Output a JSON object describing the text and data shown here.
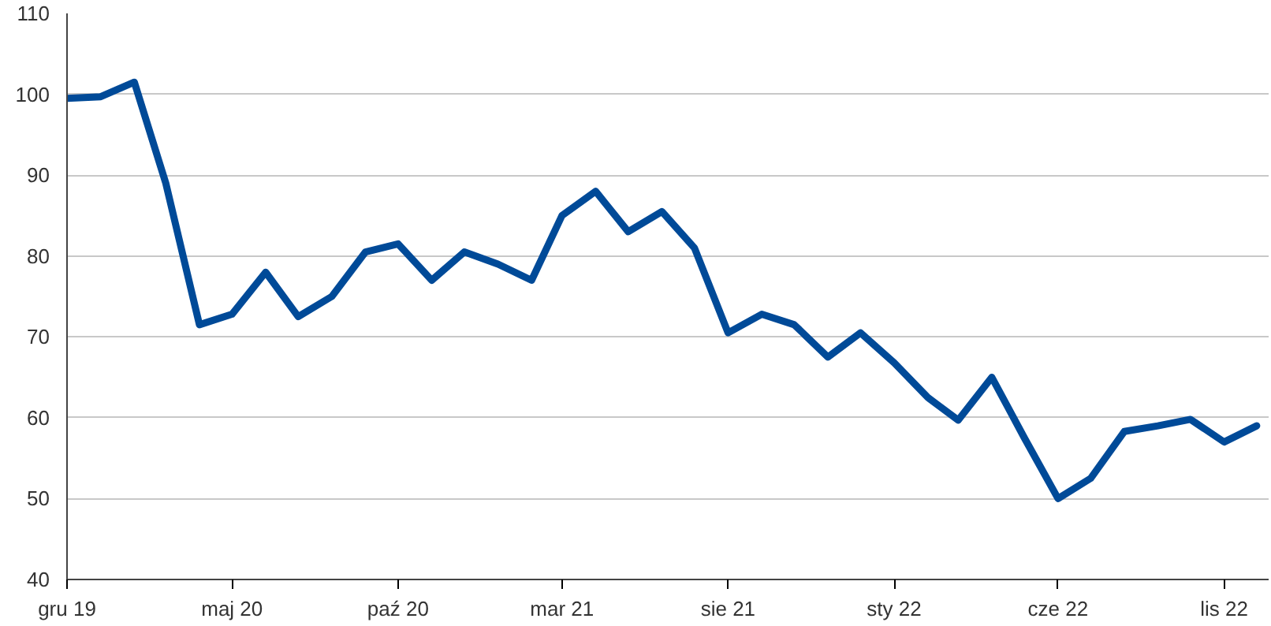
{
  "chart_data": {
    "type": "line",
    "x": [
      "2019-12",
      "2020-01",
      "2020-02",
      "2020-03",
      "2020-04",
      "2020-05",
      "2020-06",
      "2020-07",
      "2020-08",
      "2020-09",
      "2020-10",
      "2020-11",
      "2020-12",
      "2021-01",
      "2021-02",
      "2021-03",
      "2021-04",
      "2021-05",
      "2021-06",
      "2021-07",
      "2021-08",
      "2021-09",
      "2021-10",
      "2021-11",
      "2021-12",
      "2022-01",
      "2022-02",
      "2022-03",
      "2022-04",
      "2022-05",
      "2022-06",
      "2022-07",
      "2022-08",
      "2022-09",
      "2022-10",
      "2022-11",
      "2022-12"
    ],
    "series": [
      {
        "color": "#004a98",
        "values": [
          99.5,
          99.7,
          101.5,
          89,
          71.5,
          72.8,
          78,
          72.5,
          75,
          80.5,
          81.5,
          77,
          80.5,
          79,
          77,
          85,
          88,
          83,
          85.5,
          81,
          70.5,
          72.8,
          71.5,
          67.5,
          70.5,
          66.8,
          62.5,
          59.7,
          65,
          57.5,
          50,
          52.5,
          58.3,
          59,
          59.8,
          57,
          59
        ]
      }
    ],
    "xlim": [
      "2019-12-01",
      "2022-12-12"
    ],
    "xticks": [
      {
        "value": "2019-12",
        "label": "gru 19"
      },
      {
        "value": "2020-05",
        "label": "maj 20"
      },
      {
        "value": "2020-10",
        "label": "paź 20"
      },
      {
        "value": "2021-03",
        "label": "mar 21"
      },
      {
        "value": "2021-08",
        "label": "sie 21"
      },
      {
        "value": "2022-01",
        "label": "sty 22"
      },
      {
        "value": "2022-06",
        "label": "cze 22"
      },
      {
        "value": "2022-11",
        "label": "lis 22"
      }
    ],
    "ylim": [
      40,
      110
    ],
    "yticks": [
      40,
      50,
      60,
      70,
      80,
      90,
      100,
      110
    ],
    "grid": "y"
  }
}
